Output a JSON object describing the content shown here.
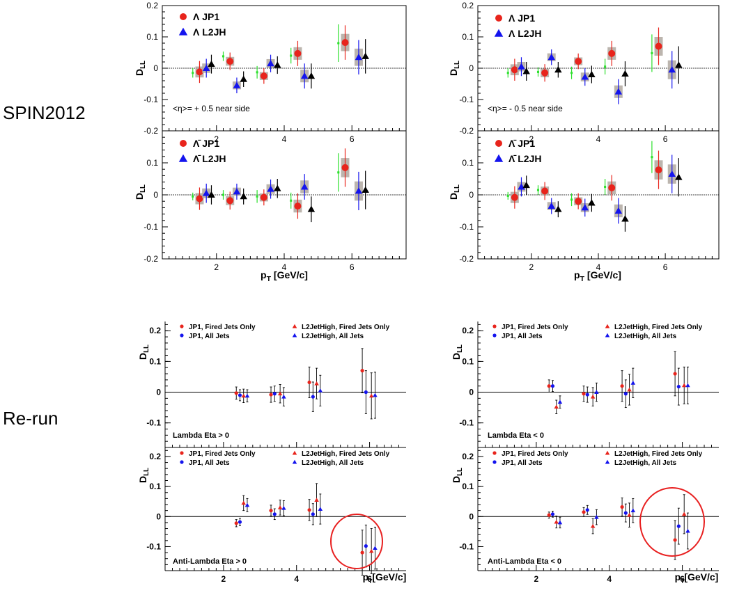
{
  "row_labels": {
    "top": "SPIN2012",
    "bottom": "Re-run"
  },
  "colors": {
    "red": "#e8241c",
    "blue": "#1414ee",
    "green": "#2ee02e",
    "black": "#000000",
    "sysbox": "#b0a8a0",
    "circle": "#e82020"
  },
  "chart_data": [
    {
      "id": "s1",
      "type": "scatter",
      "style": "spin",
      "xlim": [
        0.4,
        7.6
      ],
      "ylim": [
        -0.2,
        0.2
      ],
      "yticks": [
        -0.2,
        -0.1,
        0,
        0.1,
        0.2
      ],
      "xticks": [
        2,
        4,
        6
      ],
      "xlabel": "",
      "ylabel": "D_LL",
      "legend": [
        "Λ JP1",
        "Λ L2JH"
      ],
      "annotation": "<η>= + 0.5 near side",
      "series": [
        {
          "name": "Λ JP1",
          "marker": "circle",
          "color": "red",
          "sys": true,
          "x": [
            1.5,
            2.4,
            3.4,
            4.4,
            5.8
          ],
          "y": [
            -0.012,
            0.022,
            -0.025,
            0.047,
            0.082
          ],
          "err": [
            0.035,
            0.028,
            0.025,
            0.04,
            0.055
          ]
        },
        {
          "name": "Λ L2JH",
          "marker": "triangle",
          "color": "blue",
          "sys": true,
          "x": [
            1.7,
            2.6,
            3.6,
            4.6,
            6.2
          ],
          "y": [
            0.0,
            -0.055,
            0.015,
            -0.025,
            0.035
          ],
          "err": [
            0.03,
            0.025,
            0.028,
            0.04,
            0.055
          ]
        },
        {
          "name": "",
          "marker": "square",
          "color": "green",
          "sys": false,
          "x": [
            1.3,
            2.2,
            3.2,
            4.2,
            5.6
          ],
          "y": [
            -0.015,
            0.038,
            -0.013,
            0.04,
            0.08
          ],
          "err": [
            0.015,
            0.015,
            0.02,
            0.025,
            0.06
          ]
        },
        {
          "name": "",
          "marker": "triangle",
          "color": "black",
          "sys": false,
          "x": [
            1.85,
            2.8,
            3.8,
            4.8,
            6.4
          ],
          "y": [
            0.013,
            -0.035,
            0.01,
            -0.025,
            0.038
          ],
          "err": [
            0.03,
            0.025,
            0.028,
            0.04,
            0.055
          ]
        }
      ]
    },
    {
      "id": "s2",
      "type": "scatter",
      "style": "spin",
      "xlim": [
        0.4,
        7.6
      ],
      "ylim": [
        -0.2,
        0.2
      ],
      "yticks": [
        -0.2,
        -0.1,
        0,
        0.1
      ],
      "xticks": [
        2,
        4,
        6
      ],
      "xlabel": "p_T [GeV/c]",
      "ylabel": "D_LL",
      "legend": [
        "Λ̄ JP1",
        "Λ̄ L2JH"
      ],
      "annotation": "",
      "series": [
        {
          "name": "Λ̄ JP1",
          "marker": "circle",
          "color": "red",
          "sys": true,
          "x": [
            1.5,
            2.4,
            3.4,
            4.4,
            5.8
          ],
          "y": [
            -0.012,
            -0.018,
            -0.008,
            -0.035,
            0.085
          ],
          "err": [
            0.035,
            0.028,
            0.025,
            0.04,
            0.06
          ]
        },
        {
          "name": "Λ̄ L2JH",
          "marker": "triangle",
          "color": "blue",
          "sys": true,
          "x": [
            1.7,
            2.6,
            3.6,
            4.6,
            6.2
          ],
          "y": [
            0.005,
            0.01,
            0.018,
            0.025,
            0.012
          ],
          "err": [
            0.03,
            0.025,
            0.03,
            0.04,
            0.06
          ]
        },
        {
          "name": "",
          "marker": "square",
          "color": "green",
          "sys": false,
          "x": [
            1.3,
            2.2,
            3.2,
            4.2,
            5.6
          ],
          "y": [
            -0.005,
            0.0,
            -0.005,
            -0.018,
            0.07
          ],
          "err": [
            0.012,
            0.015,
            0.02,
            0.025,
            0.06
          ]
        },
        {
          "name": "",
          "marker": "triangle",
          "color": "black",
          "sys": false,
          "x": [
            1.85,
            2.8,
            3.8,
            4.8,
            6.4
          ],
          "y": [
            0.0,
            -0.005,
            0.02,
            -0.045,
            0.015
          ],
          "err": [
            0.03,
            0.025,
            0.03,
            0.04,
            0.06
          ]
        }
      ]
    },
    {
      "id": "s3",
      "type": "scatter",
      "style": "spin",
      "xlim": [
        0.4,
        7.6
      ],
      "ylim": [
        -0.2,
        0.2
      ],
      "yticks": [
        -0.2,
        -0.1,
        0,
        0.1,
        0.2
      ],
      "xticks": [
        2,
        4,
        6
      ],
      "xlabel": "",
      "ylabel": "D_LL",
      "legend": [
        "Λ JP1",
        "Λ L2JH"
      ],
      "annotation": "<η>= - 0.5 near side",
      "series": [
        {
          "name": "Λ JP1",
          "marker": "circle",
          "color": "red",
          "sys": true,
          "x": [
            1.5,
            2.4,
            3.4,
            4.4,
            5.8
          ],
          "y": [
            -0.005,
            -0.015,
            0.022,
            0.047,
            0.07
          ],
          "err": [
            0.035,
            0.028,
            0.025,
            0.04,
            0.06
          ]
        },
        {
          "name": "Λ L2JH",
          "marker": "triangle",
          "color": "blue",
          "sys": true,
          "x": [
            1.7,
            2.6,
            3.6,
            4.6,
            6.2
          ],
          "y": [
            0.005,
            0.035,
            -0.028,
            -0.075,
            -0.005
          ],
          "err": [
            0.03,
            0.025,
            0.028,
            0.04,
            0.06
          ]
        },
        {
          "name": "",
          "marker": "square",
          "color": "green",
          "sys": false,
          "x": [
            1.3,
            2.2,
            3.2,
            4.2,
            5.6
          ],
          "y": [
            -0.015,
            -0.012,
            -0.015,
            0.005,
            0.048
          ],
          "err": [
            0.015,
            0.015,
            0.02,
            0.025,
            0.06
          ]
        },
        {
          "name": "",
          "marker": "triangle",
          "color": "black",
          "sys": false,
          "x": [
            1.85,
            2.8,
            3.8,
            4.8,
            6.4
          ],
          "y": [
            -0.01,
            -0.005,
            -0.02,
            -0.018,
            0.01
          ],
          "err": [
            0.03,
            0.025,
            0.028,
            0.04,
            0.06
          ]
        }
      ]
    },
    {
      "id": "s4",
      "type": "scatter",
      "style": "spin",
      "xlim": [
        0.4,
        7.6
      ],
      "ylim": [
        -0.2,
        0.2
      ],
      "yticks": [
        -0.2,
        -0.1,
        0,
        0.1
      ],
      "xticks": [
        2,
        4,
        6
      ],
      "xlabel": "p_T [GeV/c]",
      "ylabel": "D_LL",
      "legend": [
        "Λ̄ JP1",
        "Λ̄ L2JH"
      ],
      "annotation": "",
      "series": [
        {
          "name": "Λ̄ JP1",
          "marker": "circle",
          "color": "red",
          "sys": true,
          "x": [
            1.5,
            2.4,
            3.4,
            4.4,
            5.8
          ],
          "y": [
            -0.008,
            0.012,
            -0.02,
            0.022,
            0.078
          ],
          "err": [
            0.035,
            0.028,
            0.025,
            0.04,
            0.06
          ]
        },
        {
          "name": "Λ̄ L2JH",
          "marker": "triangle",
          "color": "blue",
          "sys": true,
          "x": [
            1.7,
            2.6,
            3.6,
            4.6,
            6.2
          ],
          "y": [
            0.025,
            -0.035,
            -0.04,
            -0.05,
            0.065
          ],
          "err": [
            0.03,
            0.025,
            0.028,
            0.04,
            0.06
          ]
        },
        {
          "name": "",
          "marker": "square",
          "color": "green",
          "sys": false,
          "x": [
            1.3,
            2.2,
            3.2,
            4.2,
            5.6
          ],
          "y": [
            -0.003,
            0.015,
            -0.015,
            0.025,
            0.118
          ],
          "err": [
            0.012,
            0.015,
            0.02,
            0.025,
            0.05
          ]
        },
        {
          "name": "",
          "marker": "triangle",
          "color": "black",
          "sys": false,
          "x": [
            1.85,
            2.8,
            3.8,
            4.8,
            6.4
          ],
          "y": [
            0.03,
            -0.045,
            -0.025,
            -0.075,
            0.055
          ],
          "err": [
            0.03,
            0.025,
            0.028,
            0.04,
            0.06
          ]
        }
      ]
    },
    {
      "id": "r1",
      "type": "scatter",
      "style": "rerun",
      "xlim": [
        0.4,
        7.0
      ],
      "ylim": [
        -0.18,
        0.23
      ],
      "yticks": [
        -0.1,
        0,
        0.1,
        0.2
      ],
      "xticks": [],
      "xlabel": "",
      "ylabel": "D_LL",
      "legend": [
        "JP1, Fired Jets Only",
        "L2JetHigh, Fired Jets Only",
        "JP1, All Jets",
        "L2JetHigh, All Jets"
      ],
      "annotation": "Lambda Eta > 0",
      "series": [
        {
          "name": "JP1, Fired Jets Only",
          "marker": "circle",
          "color": "red",
          "x": [
            2.35,
            3.3,
            4.35,
            5.8
          ],
          "y": [
            -0.003,
            -0.008,
            0.032,
            0.07
          ],
          "err": [
            0.02,
            0.025,
            0.05,
            0.072
          ]
        },
        {
          "name": "JP1, All Jets",
          "marker": "circle",
          "color": "blue",
          "x": [
            2.45,
            3.4,
            4.45,
            5.9
          ],
          "y": [
            -0.01,
            -0.005,
            -0.015,
            0.0
          ],
          "err": [
            0.018,
            0.025,
            0.048,
            0.07
          ]
        },
        {
          "name": "L2JetHigh, Fired Jets Only",
          "marker": "triangle",
          "color": "red",
          "x": [
            2.55,
            3.55,
            4.55,
            6.05
          ],
          "y": [
            -0.012,
            -0.005,
            0.028,
            -0.012
          ],
          "err": [
            0.022,
            0.03,
            0.05,
            0.075
          ]
        },
        {
          "name": "L2JetHigh, All Jets",
          "marker": "triangle",
          "color": "blue",
          "x": [
            2.65,
            3.65,
            4.65,
            6.15
          ],
          "y": [
            -0.012,
            -0.015,
            0.005,
            -0.01
          ],
          "err": [
            0.02,
            0.03,
            0.05,
            0.075
          ]
        }
      ]
    },
    {
      "id": "r2",
      "type": "scatter",
      "style": "rerun",
      "xlim": [
        0.4,
        7.0
      ],
      "ylim": [
        -0.18,
        0.23
      ],
      "yticks": [
        -0.1,
        0,
        0.1,
        0.2
      ],
      "xticks": [
        2,
        4,
        6
      ],
      "xlabel": "p_T[GeV/c]",
      "ylabel": "D_LL",
      "legend": [
        "JP1, Fired Jets Only",
        "L2JetHigh, Fired Jets Only",
        "JP1, All Jets",
        "L2JetHigh, All Jets"
      ],
      "annotation": "Anti-Lambda Eta > 0",
      "series": [
        {
          "name": "JP1, Fired Jets Only",
          "marker": "circle",
          "color": "red",
          "x": [
            2.35,
            3.3,
            4.35,
            5.8
          ],
          "y": [
            -0.022,
            0.02,
            0.022,
            -0.12
          ],
          "err": [
            0.012,
            0.018,
            0.035,
            0.075
          ]
        },
        {
          "name": "JP1, All Jets",
          "marker": "circle",
          "color": "blue",
          "x": [
            2.45,
            3.4,
            4.45,
            5.9
          ],
          "y": [
            -0.018,
            0.008,
            0.008,
            -0.098
          ],
          "err": [
            0.012,
            0.018,
            0.035,
            0.07
          ]
        },
        {
          "name": "L2JetHigh, Fired Jets Only",
          "marker": "triangle",
          "color": "red",
          "x": [
            2.55,
            3.55,
            4.55,
            6.05
          ],
          "y": [
            0.045,
            0.03,
            0.055,
            -0.115
          ],
          "err": [
            0.025,
            0.025,
            0.055,
            0.075
          ]
        },
        {
          "name": "L2JetHigh, All Jets",
          "marker": "triangle",
          "color": "blue",
          "x": [
            2.65,
            3.65,
            4.65,
            6.15
          ],
          "y": [
            0.038,
            0.028,
            0.025,
            -0.105
          ],
          "err": [
            0.022,
            0.025,
            0.05,
            0.07
          ]
        }
      ]
    },
    {
      "id": "r3",
      "type": "scatter",
      "style": "rerun",
      "xlim": [
        0.4,
        7.0
      ],
      "ylim": [
        -0.18,
        0.23
      ],
      "yticks": [
        -0.1,
        0,
        0.1,
        0.2
      ],
      "xticks": [],
      "xlabel": "",
      "ylabel": "D_LL",
      "legend": [
        "JP1, Fired Jets Only",
        "L2JetHigh, Fired Jets Only",
        "JP1, All Jets",
        "L2JetHigh, All Jets"
      ],
      "annotation": "Lambda Eta < 0",
      "series": [
        {
          "name": "JP1, Fired Jets Only",
          "marker": "circle",
          "color": "red",
          "x": [
            2.35,
            3.3,
            4.35,
            5.8
          ],
          "y": [
            0.02,
            -0.005,
            0.02,
            0.06
          ],
          "err": [
            0.02,
            0.025,
            0.05,
            0.072
          ]
        },
        {
          "name": "JP1, All Jets",
          "marker": "circle",
          "color": "blue",
          "x": [
            2.45,
            3.4,
            4.45,
            5.9
          ],
          "y": [
            0.02,
            -0.008,
            -0.005,
            0.018
          ],
          "err": [
            0.018,
            0.025,
            0.045,
            0.06
          ]
        },
        {
          "name": "L2JetHigh, Fired Jets Only",
          "marker": "triangle",
          "color": "red",
          "x": [
            2.55,
            3.55,
            4.55,
            6.05
          ],
          "y": [
            -0.048,
            -0.015,
            0.008,
            0.022
          ],
          "err": [
            0.022,
            0.03,
            0.05,
            0.06
          ]
        },
        {
          "name": "L2JetHigh, All Jets",
          "marker": "triangle",
          "color": "blue",
          "x": [
            2.65,
            3.65,
            4.65,
            6.15
          ],
          "y": [
            -0.032,
            0.0,
            0.03,
            0.022
          ],
          "err": [
            0.02,
            0.03,
            0.048,
            0.06
          ]
        }
      ]
    },
    {
      "id": "r4",
      "type": "scatter",
      "style": "rerun",
      "xlim": [
        0.4,
        7.0
      ],
      "ylim": [
        -0.18,
        0.23
      ],
      "yticks": [
        -0.1,
        0,
        0.1,
        0.2
      ],
      "xticks": [
        2,
        4,
        6
      ],
      "xlabel": "p_T[GeV/c]",
      "ylabel": "D_LL",
      "legend": [
        "JP1, Fired Jets Only",
        "L2JetHigh, Fired Jets Only",
        "JP1, All Jets",
        "L2JetHigh, All Jets"
      ],
      "annotation": "Anti-Lambda Eta < 0",
      "series": [
        {
          "name": "JP1, Fired Jets Only",
          "marker": "circle",
          "color": "red",
          "x": [
            2.35,
            3.3,
            4.35,
            5.8
          ],
          "y": [
            0.005,
            0.015,
            0.032,
            -0.078
          ],
          "err": [
            0.01,
            0.015,
            0.03,
            0.065
          ]
        },
        {
          "name": "JP1, All Jets",
          "marker": "circle",
          "color": "blue",
          "x": [
            2.45,
            3.4,
            4.45,
            5.9
          ],
          "y": [
            0.008,
            0.022,
            0.012,
            -0.032
          ],
          "err": [
            0.01,
            0.015,
            0.03,
            0.06
          ]
        },
        {
          "name": "L2JetHigh, Fired Jets Only",
          "marker": "triangle",
          "color": "red",
          "x": [
            2.55,
            3.55,
            4.55,
            6.05
          ],
          "y": [
            -0.018,
            -0.032,
            0.005,
            0.008
          ],
          "err": [
            0.02,
            0.025,
            0.04,
            0.065
          ]
        },
        {
          "name": "L2JetHigh, All Jets",
          "marker": "triangle",
          "color": "blue",
          "x": [
            2.65,
            3.65,
            4.65,
            6.15
          ],
          "y": [
            -0.02,
            -0.002,
            0.02,
            -0.048
          ],
          "err": [
            0.018,
            0.025,
            0.04,
            0.06
          ]
        }
      ]
    }
  ]
}
